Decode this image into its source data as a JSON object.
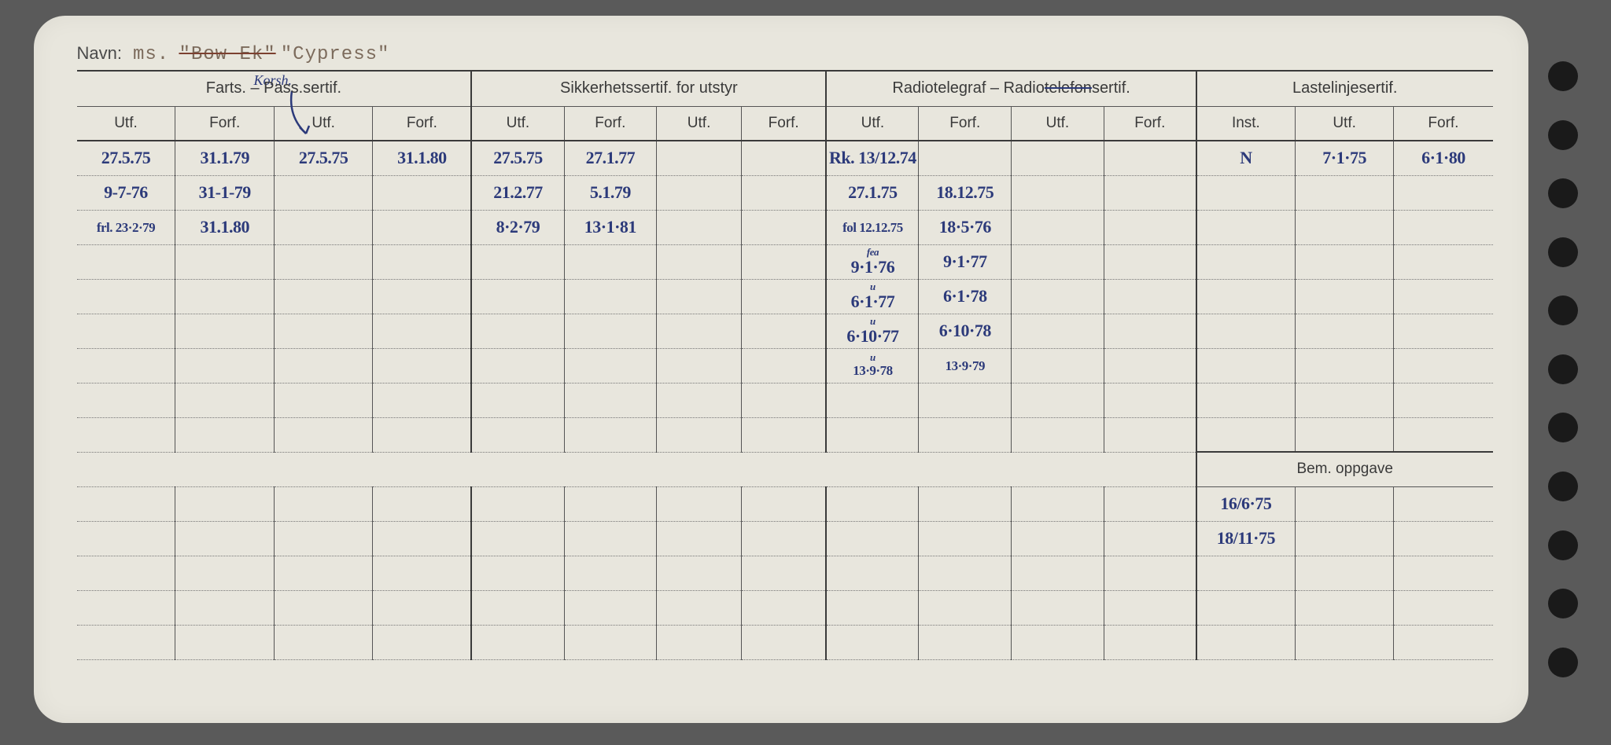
{
  "labels": {
    "navn": "Navn:",
    "ms": "ms.",
    "bow_ek": "\"Bow Ek\"",
    "cypress": "\"Cypress\"",
    "farts": "Farts. –  Pass.sertif.",
    "korsk": "Korsh.",
    "sikkerhet": "Sikkerhetssertif. for utstyr",
    "radio": "Radiotelegraf – Radiotelefonsertif.",
    "laste": "Lastelinjesertif.",
    "utf": "Utf.",
    "forf": "Forf.",
    "inst": "Inst.",
    "bem": "Bem. oppgave"
  },
  "columns": {
    "widths_pct": [
      6.4,
      6.4,
      6.4,
      6.4,
      6.0,
      6.0,
      5.5,
      5.5,
      6.0,
      6.0,
      6.0,
      6.0,
      6.4,
      6.4,
      6.4
    ]
  },
  "rows": [
    {
      "c": [
        "27.5.75",
        "31.1.79",
        "27.5.75",
        "31.1.80",
        "27.5.75",
        "27.1.77",
        "",
        "",
        "Rk. 13/12.74",
        "",
        "",
        "",
        "N",
        "7·1·75",
        "6·1·80"
      ]
    },
    {
      "c": [
        "9-7-76",
        "31-1-79",
        "",
        "",
        "21.2.77",
        "5.1.79",
        "",
        "",
        "27.1.75",
        "18.12.75",
        "",
        "",
        "",
        "",
        ""
      ]
    },
    {
      "c": [
        "frl. 23·2·79",
        "31.1.80",
        "",
        "",
        "8·2·79",
        "13·1·81",
        "",
        "",
        "fol 12.12.75",
        "18·5·76",
        "",
        "",
        "",
        "",
        ""
      ],
      "small": [
        0,
        8
      ]
    },
    {
      "c": [
        "",
        "",
        "",
        "",
        "",
        "",
        "",
        "",
        "9·1·76",
        "9·1·77",
        "",
        "",
        "",
        "",
        ""
      ],
      "pre": [
        "",
        "",
        "",
        "",
        "",
        "",
        "",
        "",
        "fea",
        "",
        "",
        "",
        "",
        "",
        ""
      ]
    },
    {
      "c": [
        "",
        "",
        "",
        "",
        "",
        "",
        "",
        "",
        "6·1·77",
        "6·1·78",
        "",
        "",
        "",
        "",
        ""
      ],
      "pre": [
        "",
        "",
        "",
        "",
        "",
        "",
        "",
        "",
        "u",
        "",
        "",
        "",
        "",
        "",
        ""
      ]
    },
    {
      "c": [
        "",
        "",
        "",
        "",
        "",
        "",
        "",
        "",
        "6·10·77",
        "6·10·78",
        "",
        "",
        "",
        "",
        ""
      ],
      "pre": [
        "",
        "",
        "",
        "",
        "",
        "",
        "",
        "",
        "u",
        "",
        "",
        "",
        "",
        "",
        ""
      ]
    },
    {
      "c": [
        "",
        "",
        "",
        "",
        "",
        "",
        "",
        "",
        "13·9·78",
        "13·9·79",
        "",
        "",
        "",
        "",
        ""
      ],
      "pre": [
        "",
        "",
        "",
        "",
        "",
        "",
        "",
        "",
        "u",
        "",
        "",
        "",
        "",
        "",
        ""
      ],
      "smallall": true
    },
    {
      "c": [
        "",
        "",
        "",
        "",
        "",
        "",
        "",
        "",
        "",
        "",
        "",
        "",
        "",
        "",
        ""
      ]
    },
    {
      "c": [
        "",
        "",
        "",
        "",
        "",
        "",
        "",
        "",
        "",
        "",
        "",
        "",
        "",
        "",
        ""
      ]
    }
  ],
  "bem_rows": [
    {
      "c": [
        "",
        "",
        "",
        "",
        "",
        "",
        "",
        "",
        "",
        "",
        "",
        "",
        "16/6·75",
        "",
        ""
      ]
    },
    {
      "c": [
        "",
        "",
        "",
        "",
        "",
        "",
        "",
        "",
        "",
        "",
        "",
        "",
        "18/11·75",
        "",
        ""
      ]
    },
    {
      "c": [
        "",
        "",
        "",
        "",
        "",
        "",
        "",
        "",
        "",
        "",
        "",
        "",
        "",
        "",
        ""
      ]
    },
    {
      "c": [
        "",
        "",
        "",
        "",
        "",
        "",
        "",
        "",
        "",
        "",
        "",
        "",
        "",
        "",
        ""
      ]
    },
    {
      "c": [
        "",
        "",
        "",
        "",
        "",
        "",
        "",
        "",
        "",
        "",
        "",
        "",
        "",
        "",
        ""
      ]
    }
  ],
  "style": {
    "card_bg": "#e8e6dd",
    "ink": "#2c3a7a",
    "print": "#3a3a3a",
    "typed": "#7c6b5c"
  }
}
